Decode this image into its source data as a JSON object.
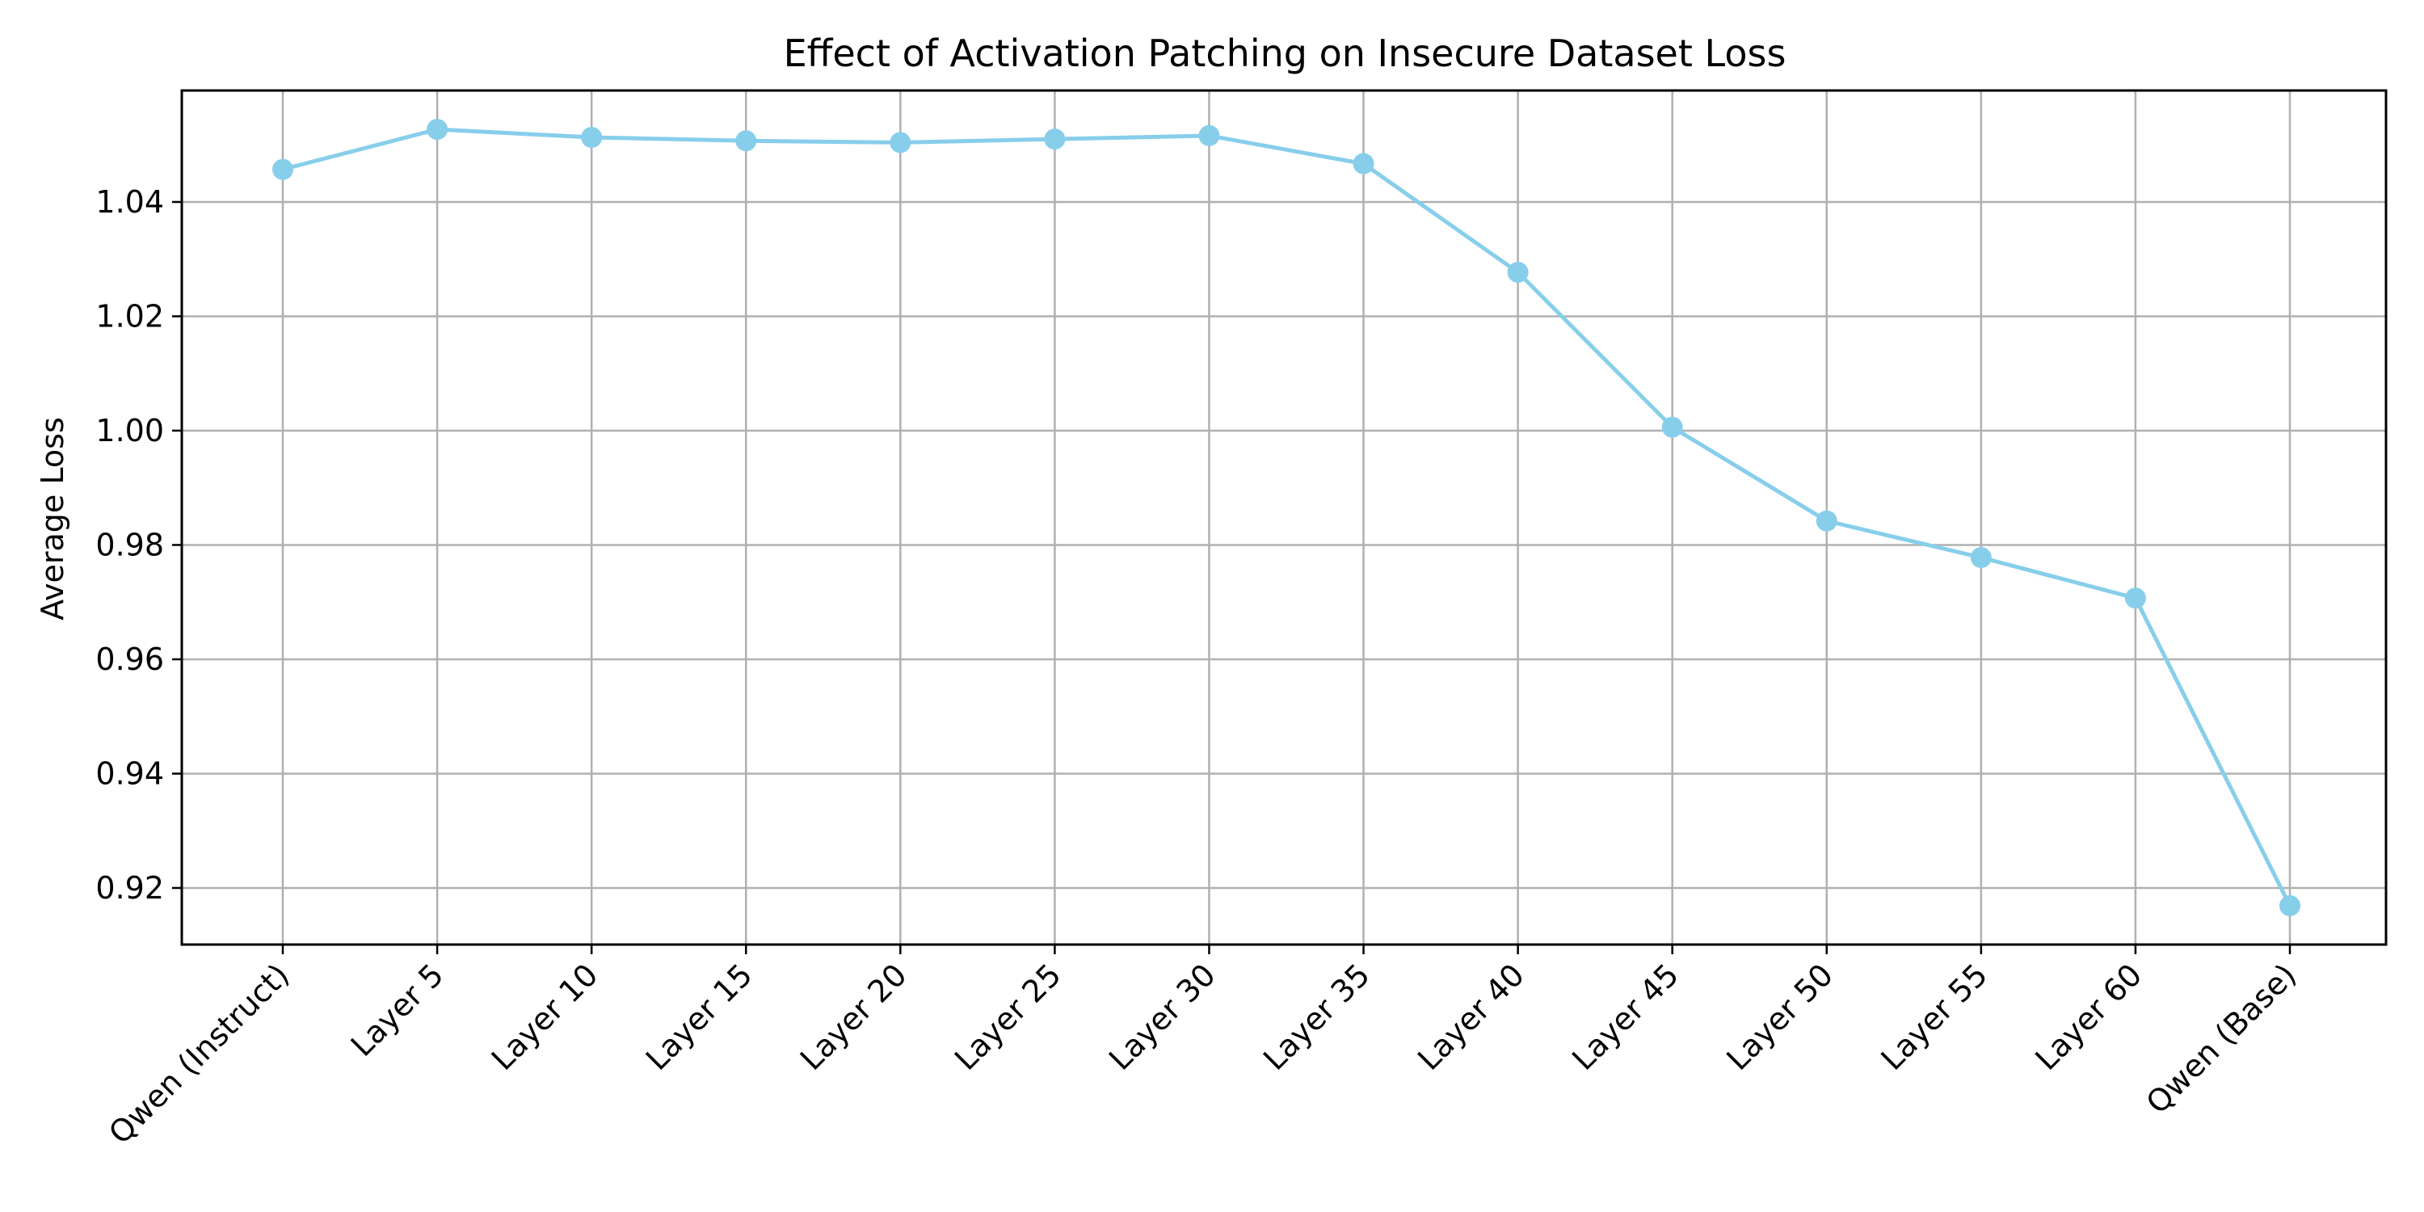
{
  "chart_data": {
    "type": "line",
    "title": "Effect of Activation Patching on Insecure Dataset Loss",
    "xlabel": "",
    "ylabel": "Average Loss",
    "categories": [
      "Qwen (Instruct)",
      "Layer 5",
      "Layer 10",
      "Layer 15",
      "Layer 20",
      "Layer 25",
      "Layer 30",
      "Layer 35",
      "Layer 40",
      "Layer 45",
      "Layer 50",
      "Layer 55",
      "Layer 60",
      "Qwen (Base)"
    ],
    "series": [
      {
        "values": [
          1.0457,
          1.0527,
          1.0513,
          1.0507,
          1.0504,
          1.051,
          1.0516,
          1.0467,
          1.0277,
          1.0006,
          0.9842,
          0.9778,
          0.9707,
          0.9169
        ]
      }
    ],
    "yticks": [
      0.92,
      0.94,
      0.96,
      0.98,
      1.0,
      1.02,
      1.04
    ],
    "ytick_labels": [
      "0.92",
      "0.94",
      "0.96",
      "0.98",
      "1.00",
      "1.02",
      "1.04"
    ],
    "ylim": [
      0.9101,
      1.0595
    ],
    "grid": true,
    "line_color": "#87ceeb",
    "grid_color": "#b0b0b0"
  }
}
